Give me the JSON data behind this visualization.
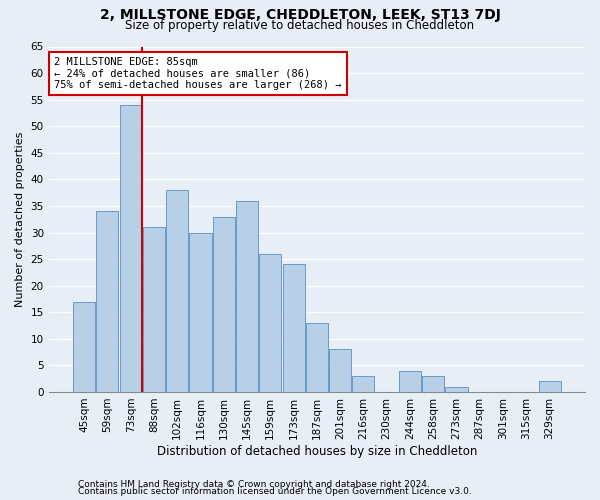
{
  "title": "2, MILLSTONE EDGE, CHEDDLETON, LEEK, ST13 7DJ",
  "subtitle": "Size of property relative to detached houses in Cheddleton",
  "xlabel": "Distribution of detached houses by size in Cheddleton",
  "ylabel": "Number of detached properties",
  "categories": [
    "45sqm",
    "59sqm",
    "73sqm",
    "88sqm",
    "102sqm",
    "116sqm",
    "130sqm",
    "145sqm",
    "159sqm",
    "173sqm",
    "187sqm",
    "201sqm",
    "216sqm",
    "230sqm",
    "244sqm",
    "258sqm",
    "273sqm",
    "287sqm",
    "301sqm",
    "315sqm",
    "329sqm"
  ],
  "values": [
    17,
    34,
    54,
    31,
    38,
    30,
    33,
    36,
    26,
    24,
    13,
    8,
    3,
    0,
    4,
    3,
    1,
    0,
    0,
    0,
    2
  ],
  "bar_color": "#b8cfe8",
  "bar_edge_color": "#5a8fc0",
  "red_line_index": 2,
  "annotation_line1": "2 MILLSTONE EDGE: 85sqm",
  "annotation_line2": "← 24% of detached houses are smaller (86)",
  "annotation_line3": "75% of semi-detached houses are larger (268) →",
  "annotation_box_color": "#ffffff",
  "annotation_box_edge": "#cc0000",
  "background_color": "#e8eef5",
  "footer1": "Contains HM Land Registry data © Crown copyright and database right 2024.",
  "footer2": "Contains public sector information licensed under the Open Government Licence v3.0.",
  "ylim": [
    0,
    65
  ],
  "yticks": [
    0,
    5,
    10,
    15,
    20,
    25,
    30,
    35,
    40,
    45,
    50,
    55,
    60,
    65
  ],
  "title_fontsize": 10,
  "subtitle_fontsize": 8.5,
  "ylabel_fontsize": 8,
  "xlabel_fontsize": 8.5,
  "tick_fontsize": 7.5,
  "footer_fontsize": 6.5
}
